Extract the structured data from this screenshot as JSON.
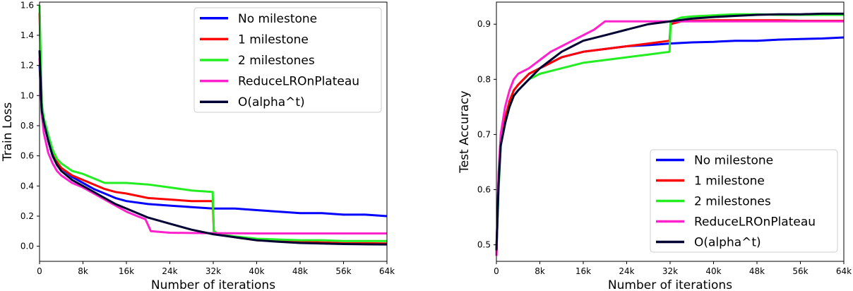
{
  "chart_data": [
    {
      "type": "line",
      "title": "",
      "xlabel": "Number of iterations",
      "ylabel": "Train Loss",
      "xlim": [
        0,
        64000
      ],
      "ylim": [
        -0.1,
        1.62
      ],
      "x_ticks": [
        {
          "value": 0,
          "label": "0"
        },
        {
          "value": 8000,
          "label": "8k"
        },
        {
          "value": 16000,
          "label": "16k"
        },
        {
          "value": 24000,
          "label": "24k"
        },
        {
          "value": 32000,
          "label": "32k"
        },
        {
          "value": 40000,
          "label": "40k"
        },
        {
          "value": 48000,
          "label": "48k"
        },
        {
          "value": 56000,
          "label": "56k"
        },
        {
          "value": 64000,
          "label": "64k"
        }
      ],
      "y_ticks": [
        {
          "value": 0.0,
          "label": "0.0"
        },
        {
          "value": 0.2,
          "label": "0.2"
        },
        {
          "value": 0.4,
          "label": "0.4"
        },
        {
          "value": 0.6,
          "label": "0.6"
        },
        {
          "value": 0.8,
          "label": "0.8"
        },
        {
          "value": 1.0,
          "label": "1.0"
        },
        {
          "value": 1.2,
          "label": "1.2"
        },
        {
          "value": 1.4,
          "label": "1.4"
        },
        {
          "value": 1.6,
          "label": "1.6"
        }
      ],
      "grid": false,
      "legend_position": "top-right",
      "series": [
        {
          "name": "No milestone",
          "color": "#0000ff",
          "x": [
            0,
            400,
            800,
            1600,
            2400,
            3200,
            4000,
            6000,
            8000,
            10000,
            12000,
            14000,
            16000,
            20000,
            24000,
            28000,
            32000,
            36000,
            40000,
            44000,
            48000,
            52000,
            56000,
            60000,
            64000
          ],
          "y": [
            1.2,
            0.9,
            0.82,
            0.7,
            0.6,
            0.55,
            0.52,
            0.46,
            0.42,
            0.38,
            0.35,
            0.32,
            0.3,
            0.28,
            0.27,
            0.26,
            0.25,
            0.25,
            0.24,
            0.23,
            0.22,
            0.22,
            0.21,
            0.21,
            0.2
          ]
        },
        {
          "name": "1 milestone",
          "color": "#ff0000",
          "x": [
            0,
            400,
            800,
            1600,
            2400,
            3200,
            4000,
            6000,
            8000,
            10000,
            12000,
            14000,
            16000,
            20000,
            24000,
            28000,
            31900,
            32100,
            33000,
            36000,
            40000,
            44000,
            48000,
            52000,
            56000,
            60000,
            64000
          ],
          "y": [
            1.55,
            0.92,
            0.83,
            0.72,
            0.62,
            0.56,
            0.52,
            0.47,
            0.44,
            0.41,
            0.38,
            0.36,
            0.35,
            0.32,
            0.31,
            0.3,
            0.3,
            0.1,
            0.08,
            0.06,
            0.04,
            0.035,
            0.03,
            0.025,
            0.02,
            0.02,
            0.018
          ]
        },
        {
          "name": "2 milestones",
          "color": "#22ee22",
          "x": [
            0,
            400,
            800,
            1600,
            2400,
            3200,
            4000,
            6000,
            8000,
            10000,
            12000,
            14000,
            16000,
            20000,
            24000,
            28000,
            31900,
            32100,
            33000,
            36000,
            40000,
            44000,
            48000,
            52000,
            56000,
            60000,
            64000
          ],
          "y": [
            1.6,
            0.95,
            0.85,
            0.74,
            0.64,
            0.58,
            0.55,
            0.5,
            0.48,
            0.45,
            0.42,
            0.42,
            0.42,
            0.41,
            0.39,
            0.37,
            0.36,
            0.1,
            0.08,
            0.065,
            0.05,
            0.045,
            0.04,
            0.04,
            0.035,
            0.035,
            0.035
          ]
        },
        {
          "name": "ReduceLROnPlateau",
          "color": "#ff22cc",
          "x": [
            0,
            400,
            800,
            1600,
            2400,
            3200,
            4000,
            6000,
            8000,
            10000,
            12000,
            14000,
            16000,
            18000,
            19500,
            20500,
            24000,
            28000,
            32000,
            36000,
            40000,
            44000,
            48000,
            52000,
            56000,
            60000,
            64000
          ],
          "y": [
            1.25,
            0.88,
            0.75,
            0.62,
            0.55,
            0.5,
            0.47,
            0.42,
            0.39,
            0.35,
            0.31,
            0.27,
            0.23,
            0.2,
            0.18,
            0.1,
            0.09,
            0.088,
            0.087,
            0.086,
            0.085,
            0.085,
            0.085,
            0.085,
            0.085,
            0.085,
            0.085
          ]
        },
        {
          "name": "O(alpha^t)",
          "color": "#000033",
          "x": [
            0,
            400,
            800,
            1600,
            2400,
            3200,
            4000,
            6000,
            8000,
            10000,
            12000,
            14000,
            16000,
            20000,
            24000,
            28000,
            32000,
            36000,
            40000,
            44000,
            48000,
            52000,
            56000,
            60000,
            64000
          ],
          "y": [
            1.3,
            0.9,
            0.82,
            0.7,
            0.6,
            0.54,
            0.5,
            0.44,
            0.4,
            0.36,
            0.32,
            0.28,
            0.25,
            0.19,
            0.15,
            0.11,
            0.08,
            0.06,
            0.04,
            0.03,
            0.022,
            0.018,
            0.015,
            0.013,
            0.012
          ]
        }
      ]
    },
    {
      "type": "line",
      "title": "",
      "xlabel": "Number of iterations",
      "ylabel": "Test Accuracy",
      "xlim": [
        0,
        64000
      ],
      "ylim": [
        0.47,
        0.94
      ],
      "x_ticks": [
        {
          "value": 0,
          "label": "0"
        },
        {
          "value": 8000,
          "label": "8k"
        },
        {
          "value": 16000,
          "label": "16k"
        },
        {
          "value": 24000,
          "label": "24k"
        },
        {
          "value": 32000,
          "label": "32k"
        },
        {
          "value": 40000,
          "label": "40k"
        },
        {
          "value": 48000,
          "label": "48k"
        },
        {
          "value": 56000,
          "label": "56k"
        },
        {
          "value": 64000,
          "label": "64k"
        }
      ],
      "y_ticks": [
        {
          "value": 0.5,
          "label": "0.5"
        },
        {
          "value": 0.6,
          "label": "0.6"
        },
        {
          "value": 0.7,
          "label": "0.7"
        },
        {
          "value": 0.8,
          "label": "0.8"
        },
        {
          "value": 0.9,
          "label": "0.9"
        }
      ],
      "grid": false,
      "legend_position": "bottom-right",
      "series": [
        {
          "name": "No milestone",
          "color": "#0000ff",
          "x": [
            0,
            400,
            800,
            1600,
            2400,
            3200,
            4000,
            6000,
            8000,
            10000,
            12000,
            14000,
            16000,
            20000,
            24000,
            28000,
            32000,
            36000,
            40000,
            44000,
            48000,
            52000,
            56000,
            60000,
            64000
          ],
          "y": [
            0.49,
            0.62,
            0.68,
            0.72,
            0.76,
            0.78,
            0.79,
            0.81,
            0.82,
            0.83,
            0.84,
            0.845,
            0.85,
            0.855,
            0.86,
            0.862,
            0.865,
            0.867,
            0.868,
            0.87,
            0.87,
            0.872,
            0.873,
            0.874,
            0.876
          ]
        },
        {
          "name": "1 milestone",
          "color": "#ff0000",
          "x": [
            0,
            400,
            800,
            1600,
            2400,
            3200,
            4000,
            6000,
            8000,
            10000,
            12000,
            14000,
            16000,
            20000,
            24000,
            28000,
            31900,
            32100,
            34000,
            36000,
            40000,
            44000,
            48000,
            52000,
            56000,
            60000,
            64000
          ],
          "y": [
            0.48,
            0.62,
            0.69,
            0.73,
            0.76,
            0.78,
            0.79,
            0.81,
            0.82,
            0.83,
            0.84,
            0.845,
            0.85,
            0.855,
            0.86,
            0.865,
            0.87,
            0.9,
            0.905,
            0.906,
            0.907,
            0.907,
            0.907,
            0.907,
            0.906,
            0.906,
            0.906
          ]
        },
        {
          "name": "2 milestones",
          "color": "#22ee22",
          "x": [
            0,
            400,
            800,
            1600,
            2400,
            3200,
            4000,
            6000,
            8000,
            10000,
            12000,
            14000,
            16000,
            20000,
            24000,
            28000,
            31900,
            32100,
            34000,
            36000,
            40000,
            44000,
            48000,
            52000,
            56000,
            60000,
            64000
          ],
          "y": [
            0.49,
            0.6,
            0.68,
            0.72,
            0.75,
            0.77,
            0.78,
            0.8,
            0.81,
            0.815,
            0.82,
            0.825,
            0.83,
            0.835,
            0.84,
            0.845,
            0.85,
            0.905,
            0.912,
            0.914,
            0.916,
            0.918,
            0.918,
            0.917,
            0.917,
            0.917,
            0.917
          ]
        },
        {
          "name": "ReduceLROnPlateau",
          "color": "#ff22cc",
          "x": [
            0,
            400,
            800,
            1600,
            2400,
            3200,
            4000,
            6000,
            8000,
            10000,
            12000,
            14000,
            16000,
            18000,
            20000,
            22000,
            24000,
            28000,
            32000,
            36000,
            40000,
            44000,
            48000,
            52000,
            56000,
            60000,
            64000
          ],
          "y": [
            0.48,
            0.63,
            0.7,
            0.75,
            0.78,
            0.8,
            0.81,
            0.82,
            0.835,
            0.85,
            0.86,
            0.87,
            0.88,
            0.89,
            0.905,
            0.905,
            0.905,
            0.905,
            0.905,
            0.905,
            0.905,
            0.905,
            0.905,
            0.905,
            0.905,
            0.905,
            0.905
          ]
        },
        {
          "name": "O(alpha^t)",
          "color": "#000033",
          "x": [
            0,
            400,
            800,
            1600,
            2400,
            3200,
            4000,
            6000,
            8000,
            10000,
            12000,
            14000,
            16000,
            20000,
            24000,
            28000,
            32000,
            36000,
            40000,
            44000,
            48000,
            52000,
            56000,
            60000,
            64000
          ],
          "y": [
            0.49,
            0.61,
            0.68,
            0.72,
            0.75,
            0.77,
            0.78,
            0.8,
            0.82,
            0.835,
            0.85,
            0.86,
            0.87,
            0.88,
            0.89,
            0.9,
            0.905,
            0.91,
            0.913,
            0.915,
            0.917,
            0.918,
            0.918,
            0.919,
            0.919
          ]
        }
      ]
    }
  ]
}
